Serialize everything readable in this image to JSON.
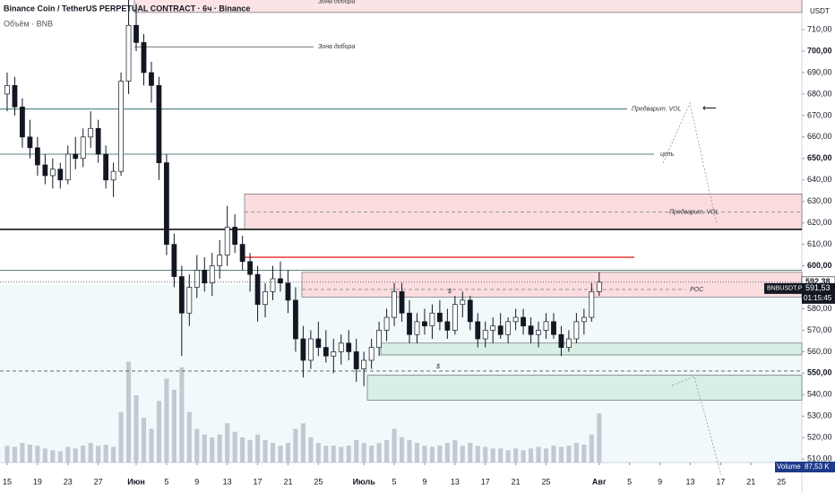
{
  "chart_data": {
    "type": "candlestick",
    "title": "Binance Coin / TetherUS PERPETUAL CONTRACT · 6ч · Binance",
    "subtitle": "Объём · BNB",
    "currency": "USDT",
    "ylim": [
      508.4,
      723.8
    ],
    "yticks": [
      {
        "value": 510,
        "label": "510,00"
      },
      {
        "value": 520,
        "label": "520,00"
      },
      {
        "value": 530,
        "label": "530,00"
      },
      {
        "value": 540,
        "label": "540,00"
      },
      {
        "value": 550,
        "label": "550,00"
      },
      {
        "value": 560,
        "label": "560,00"
      },
      {
        "value": 570,
        "label": "570,00"
      },
      {
        "value": 580,
        "label": "580,00"
      },
      {
        "value": 590,
        "label": "590,00"
      },
      {
        "value": 600,
        "label": "600,00"
      },
      {
        "value": 610,
        "label": "610,00"
      },
      {
        "value": 620,
        "label": "620,00"
      },
      {
        "value": 630,
        "label": "630,00"
      },
      {
        "value": 640,
        "label": "640,00"
      },
      {
        "value": 650,
        "label": "650,00"
      },
      {
        "value": 660,
        "label": "660,00"
      },
      {
        "value": 670,
        "label": "670,00"
      },
      {
        "value": 680,
        "label": "680,00"
      },
      {
        "value": 690,
        "label": "690,00"
      },
      {
        "value": 700,
        "label": "700,00"
      },
      {
        "value": 710,
        "label": "710,00"
      }
    ],
    "xlim": [
      -0.944,
      104.7
    ],
    "xticks": [
      {
        "value": 0,
        "label": "15"
      },
      {
        "value": 4,
        "label": "19"
      },
      {
        "value": 8,
        "label": "23"
      },
      {
        "value": 12,
        "label": "27"
      },
      {
        "value": 17,
        "label": "Июн"
      },
      {
        "value": 21,
        "label": "5"
      },
      {
        "value": 25,
        "label": "9"
      },
      {
        "value": 29,
        "label": "13"
      },
      {
        "value": 33,
        "label": "17"
      },
      {
        "value": 37,
        "label": "21"
      },
      {
        "value": 41,
        "label": "25"
      },
      {
        "value": 47,
        "label": "Июль"
      },
      {
        "value": 51,
        "label": "5"
      },
      {
        "value": 55,
        "label": "9"
      },
      {
        "value": 59,
        "label": "13"
      },
      {
        "value": 63,
        "label": "17"
      },
      {
        "value": 67,
        "label": "21"
      },
      {
        "value": 71,
        "label": "25"
      },
      {
        "value": 78,
        "label": "Авг"
      },
      {
        "value": 82,
        "label": "5"
      },
      {
        "value": 86,
        "label": "9"
      },
      {
        "value": 90,
        "label": "13"
      },
      {
        "value": 94,
        "label": "17"
      },
      {
        "value": 98,
        "label": "21"
      },
      {
        "value": 102,
        "label": "25"
      }
    ],
    "up_color": "#ffffff",
    "down_color": "#131722",
    "candles": [
      {
        "o": 680,
        "h": 690,
        "l": 672,
        "c": 684
      },
      {
        "o": 684,
        "h": 688,
        "l": 670,
        "c": 674
      },
      {
        "o": 674,
        "h": 678,
        "l": 655,
        "c": 660
      },
      {
        "o": 660,
        "h": 668,
        "l": 650,
        "c": 655
      },
      {
        "o": 655,
        "h": 660,
        "l": 642,
        "c": 647
      },
      {
        "o": 647,
        "h": 652,
        "l": 638,
        "c": 642
      },
      {
        "o": 642,
        "h": 650,
        "l": 636,
        "c": 645
      },
      {
        "o": 645,
        "h": 648,
        "l": 636,
        "c": 640
      },
      {
        "o": 640,
        "h": 656,
        "l": 638,
        "c": 652
      },
      {
        "o": 652,
        "h": 660,
        "l": 645,
        "c": 650
      },
      {
        "o": 650,
        "h": 664,
        "l": 646,
        "c": 660
      },
      {
        "o": 660,
        "h": 672,
        "l": 655,
        "c": 664
      },
      {
        "o": 664,
        "h": 668,
        "l": 648,
        "c": 652
      },
      {
        "o": 652,
        "h": 656,
        "l": 636,
        "c": 640
      },
      {
        "o": 640,
        "h": 648,
        "l": 632,
        "c": 644
      },
      {
        "o": 644,
        "h": 690,
        "l": 642,
        "c": 686
      },
      {
        "o": 686,
        "h": 725,
        "l": 680,
        "c": 712
      },
      {
        "o": 712,
        "h": 722,
        "l": 700,
        "c": 704
      },
      {
        "o": 704,
        "h": 708,
        "l": 684,
        "c": 690
      },
      {
        "o": 690,
        "h": 695,
        "l": 676,
        "c": 684
      },
      {
        "o": 684,
        "h": 688,
        "l": 640,
        "c": 648
      },
      {
        "o": 648,
        "h": 652,
        "l": 605,
        "c": 610
      },
      {
        "o": 610,
        "h": 615,
        "l": 590,
        "c": 595
      },
      {
        "o": 595,
        "h": 600,
        "l": 558,
        "c": 578
      },
      {
        "o": 578,
        "h": 596,
        "l": 572,
        "c": 590
      },
      {
        "o": 590,
        "h": 605,
        "l": 585,
        "c": 598
      },
      {
        "o": 598,
        "h": 604,
        "l": 588,
        "c": 592
      },
      {
        "o": 592,
        "h": 606,
        "l": 586,
        "c": 600
      },
      {
        "o": 600,
        "h": 612,
        "l": 594,
        "c": 605
      },
      {
        "o": 605,
        "h": 628,
        "l": 600,
        "c": 618
      },
      {
        "o": 618,
        "h": 624,
        "l": 606,
        "c": 610
      },
      {
        "o": 610,
        "h": 614,
        "l": 598,
        "c": 602
      },
      {
        "o": 602,
        "h": 606,
        "l": 588,
        "c": 596
      },
      {
        "o": 596,
        "h": 600,
        "l": 574,
        "c": 582
      },
      {
        "o": 582,
        "h": 592,
        "l": 576,
        "c": 588
      },
      {
        "o": 588,
        "h": 600,
        "l": 584,
        "c": 594
      },
      {
        "o": 594,
        "h": 602,
        "l": 588,
        "c": 592
      },
      {
        "o": 592,
        "h": 598,
        "l": 578,
        "c": 584
      },
      {
        "o": 584,
        "h": 590,
        "l": 560,
        "c": 566
      },
      {
        "o": 566,
        "h": 572,
        "l": 548,
        "c": 556
      },
      {
        "o": 556,
        "h": 570,
        "l": 552,
        "c": 566
      },
      {
        "o": 566,
        "h": 574,
        "l": 558,
        "c": 562
      },
      {
        "o": 562,
        "h": 570,
        "l": 555,
        "c": 558
      },
      {
        "o": 558,
        "h": 566,
        "l": 550,
        "c": 560
      },
      {
        "o": 560,
        "h": 568,
        "l": 554,
        "c": 564
      },
      {
        "o": 564,
        "h": 570,
        "l": 556,
        "c": 560
      },
      {
        "o": 560,
        "h": 566,
        "l": 546,
        "c": 552
      },
      {
        "o": 552,
        "h": 560,
        "l": 544,
        "c": 556
      },
      {
        "o": 556,
        "h": 566,
        "l": 552,
        "c": 562
      },
      {
        "o": 562,
        "h": 574,
        "l": 558,
        "c": 570
      },
      {
        "o": 570,
        "h": 580,
        "l": 565,
        "c": 576
      },
      {
        "o": 576,
        "h": 592,
        "l": 572,
        "c": 588
      },
      {
        "o": 588,
        "h": 592,
        "l": 574,
        "c": 578
      },
      {
        "o": 578,
        "h": 584,
        "l": 564,
        "c": 568
      },
      {
        "o": 568,
        "h": 578,
        "l": 564,
        "c": 574
      },
      {
        "o": 574,
        "h": 580,
        "l": 568,
        "c": 572
      },
      {
        "o": 572,
        "h": 582,
        "l": 566,
        "c": 578
      },
      {
        "o": 578,
        "h": 584,
        "l": 570,
        "c": 574
      },
      {
        "o": 574,
        "h": 580,
        "l": 566,
        "c": 570
      },
      {
        "o": 570,
        "h": 586,
        "l": 568,
        "c": 582
      },
      {
        "o": 582,
        "h": 588,
        "l": 576,
        "c": 584
      },
      {
        "o": 584,
        "h": 586,
        "l": 570,
        "c": 574
      },
      {
        "o": 574,
        "h": 578,
        "l": 562,
        "c": 566
      },
      {
        "o": 566,
        "h": 574,
        "l": 562,
        "c": 570
      },
      {
        "o": 570,
        "h": 576,
        "l": 564,
        "c": 572
      },
      {
        "o": 572,
        "h": 578,
        "l": 566,
        "c": 568
      },
      {
        "o": 568,
        "h": 576,
        "l": 564,
        "c": 574
      },
      {
        "o": 574,
        "h": 580,
        "l": 570,
        "c": 576
      },
      {
        "o": 576,
        "h": 580,
        "l": 568,
        "c": 572
      },
      {
        "o": 572,
        "h": 576,
        "l": 564,
        "c": 568
      },
      {
        "o": 568,
        "h": 574,
        "l": 562,
        "c": 570
      },
      {
        "o": 570,
        "h": 578,
        "l": 566,
        "c": 574
      },
      {
        "o": 574,
        "h": 578,
        "l": 566,
        "c": 568
      },
      {
        "o": 568,
        "h": 572,
        "l": 558,
        "c": 562
      },
      {
        "o": 562,
        "h": 570,
        "l": 560,
        "c": 566
      },
      {
        "o": 566,
        "h": 578,
        "l": 564,
        "c": 574
      },
      {
        "o": 574,
        "h": 580,
        "l": 568,
        "c": 576
      },
      {
        "o": 576,
        "h": 592,
        "l": 574,
        "c": 588
      },
      {
        "o": 588,
        "h": 597,
        "l": 586,
        "c": 592.38
      }
    ],
    "volume_lim": [
      0,
      240
    ],
    "volume_color": "#b8bcc8",
    "volume": [
      30,
      28,
      35,
      32,
      30,
      25,
      22,
      20,
      28,
      25,
      30,
      35,
      30,
      32,
      28,
      90,
      180,
      120,
      80,
      60,
      110,
      150,
      130,
      170,
      90,
      60,
      50,
      45,
      50,
      70,
      55,
      45,
      40,
      50,
      40,
      35,
      30,
      35,
      60,
      70,
      45,
      35,
      30,
      30,
      28,
      30,
      40,
      35,
      30,
      35,
      40,
      60,
      45,
      40,
      35,
      30,
      28,
      30,
      35,
      40,
      30,
      35,
      30,
      28,
      25,
      25,
      22,
      25,
      22,
      25,
      28,
      25,
      30,
      28,
      30,
      35,
      32,
      50,
      87.53
    ],
    "volume_name": "Volume",
    "volume_last": {
      "value": 87.53,
      "label": "87,53 K"
    },
    "zones": [
      {
        "from": 718,
        "to": 724,
        "color": "#fce4e6",
        "label": "Зона добора"
      },
      {
        "from": 617,
        "to": 633.5,
        "color": "#fbdde0"
      },
      {
        "from": 585.5,
        "to": 597,
        "color": "#fbdde0"
      },
      {
        "from": 558.5,
        "to": 564,
        "color": "#d8efe6"
      },
      {
        "from": 537.5,
        "to": 549,
        "color": "#d8efe6"
      }
    ],
    "levels": [
      {
        "value": 702,
        "label": "Зона добора",
        "color": "#4a4a4a"
      },
      {
        "value": 673,
        "label": "Предварит. VOL",
        "color": "#1e5d5d"
      },
      {
        "value": 652,
        "label": "цель",
        "color": "#1e5d5d"
      },
      {
        "value": 625,
        "label": "Предварит. VOL",
        "color": "#888888",
        "style": "dashed"
      },
      {
        "value": 617,
        "color": "#000000"
      },
      {
        "value": 604,
        "color": "#e53935"
      },
      {
        "value": 598,
        "color": "#1e5d5d"
      },
      {
        "value": 589,
        "label": "POC",
        "color": "#888888",
        "style": "dashed"
      },
      {
        "value": 551,
        "color": "#555555",
        "style": "dashed"
      }
    ],
    "annotations": [
      {
        "text": "$",
        "value": 588
      },
      {
        "text": "$",
        "value": 553
      }
    ],
    "last_price": {
      "value": 592.38,
      "label": "592,38"
    },
    "symbol": "BNBUSDT.P",
    "mark_price": {
      "value": 591.53,
      "label": "591,53"
    },
    "countdown": "01:15:45"
  }
}
